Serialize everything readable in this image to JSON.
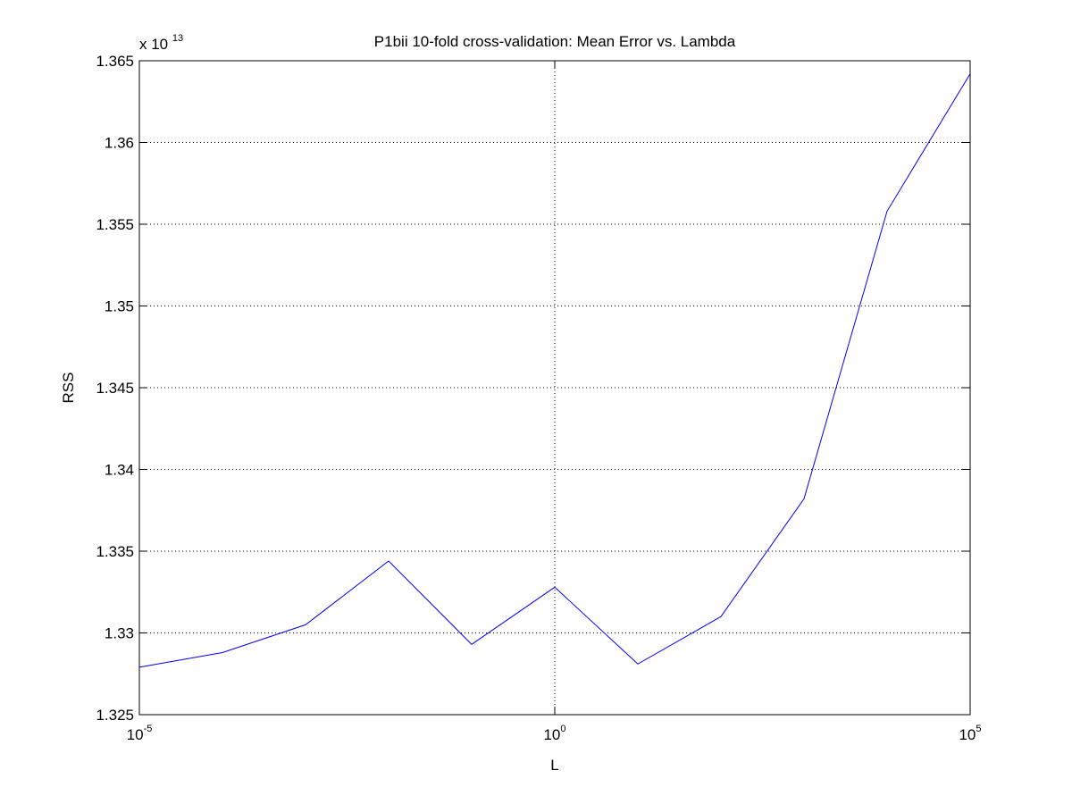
{
  "chart_data": {
    "type": "line",
    "title": "P1bii 10-fold cross-validation: Mean Error vs. Lambda",
    "xlabel": "L",
    "ylabel": "RSS",
    "x_scale": "log",
    "xlim": [
      1e-05,
      100000.0
    ],
    "ylim": [
      13250000000000.0,
      13650000000000.0
    ],
    "y_exponent_label": {
      "base": "x 10",
      "exp": "13"
    },
    "x_ticks": [
      {
        "value": 1e-05,
        "base": "10",
        "exp": "-5"
      },
      {
        "value": 1,
        "base": "10",
        "exp": "0"
      },
      {
        "value": 100000.0,
        "base": "10",
        "exp": "5"
      }
    ],
    "y_ticks": [
      {
        "value": 13250000000000.0,
        "label": "1.325"
      },
      {
        "value": 13300000000000.0,
        "label": "1.33"
      },
      {
        "value": 13350000000000.0,
        "label": "1.335"
      },
      {
        "value": 13400000000000.0,
        "label": "1.34"
      },
      {
        "value": 13450000000000.0,
        "label": "1.345"
      },
      {
        "value": 13500000000000.0,
        "label": "1.35"
      },
      {
        "value": 13550000000000.0,
        "label": "1.355"
      },
      {
        "value": 13600000000000.0,
        "label": "1.36"
      },
      {
        "value": 13650000000000.0,
        "label": "1.365"
      }
    ],
    "grid": true,
    "series": [
      {
        "color": "#0000ff",
        "x": [
          1e-05,
          0.0001,
          0.001,
          0.01,
          0.1,
          1,
          10,
          100,
          1000,
          10000,
          100000
        ],
        "y": [
          13279000000000.0,
          13288000000000.0,
          13305000000000.0,
          13344000000000.0,
          13293000000000.0,
          13328000000000.0,
          13281000000000.0,
          13310000000000.0,
          13382000000000.0,
          13558000000000.0,
          13642000000000.0
        ]
      }
    ]
  }
}
